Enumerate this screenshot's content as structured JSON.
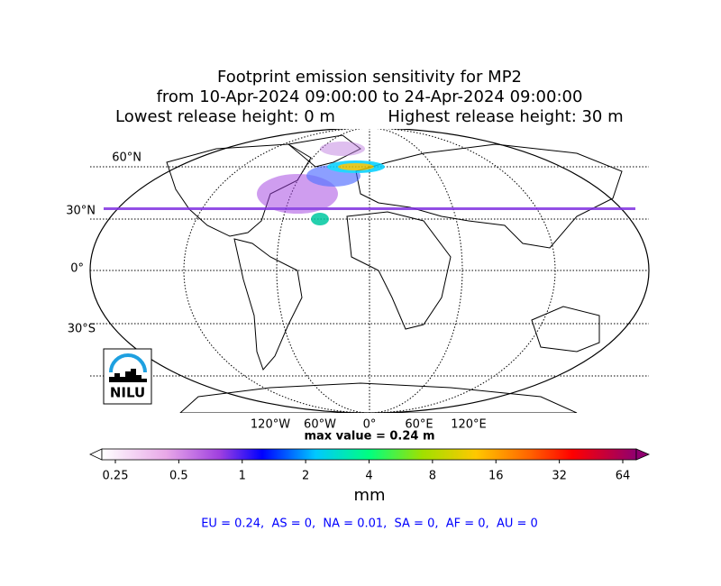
{
  "header": {
    "title_line1": "Footprint emission sensitivity for MP2",
    "title_line2": "from 10-Apr-2024 09:00:00 to 24-Apr-2024 09:00:00",
    "lowest": "Lowest release height: 0 m",
    "highest": "Highest release height: 30 m"
  },
  "map": {
    "lat_labels": [
      "60°N",
      "30°N",
      "0°",
      "30°S"
    ],
    "lon_labels": [
      "120°W",
      "60°W",
      "0°",
      "60°E",
      "120°E"
    ],
    "logo": "NILU",
    "max_value": "max value = 0.24 m"
  },
  "colorbar": {
    "scale": "log",
    "lim": [
      0.25,
      64
    ],
    "ticks": [
      0.25,
      0.5,
      1,
      2,
      4,
      8,
      16,
      32,
      64
    ],
    "unit": "mm"
  },
  "summary": "EU = 0.24,  AS = 0,  NA = 0.01,  SA = 0,  AF = 0,  AU = 0"
}
